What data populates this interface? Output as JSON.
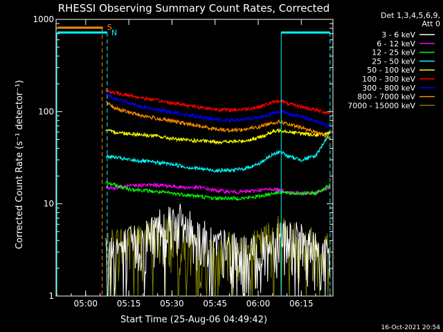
{
  "chart_data": {
    "type": "line",
    "title": "RHESSI Observing Summary Count Rates, Corrected",
    "xlabel": "Start Time (25-Aug-06 04:49:42)",
    "ylabel": "Corrected Count Rate (s⁻¹ detector⁻¹)",
    "yscale": "log",
    "ylim": [
      1,
      1000
    ],
    "xlim": [
      "04:49:42",
      "06:26:00"
    ],
    "x_ticks": [
      "05:00",
      "05:15",
      "05:30",
      "05:45",
      "06:00",
      "06:15"
    ],
    "y_ticks": [
      "1",
      "10",
      "100",
      "1000"
    ],
    "legend_header": [
      "Det 1,3,4,5,6,9,",
      "Att 0"
    ],
    "legend_position": "right",
    "x": [
      "05:07",
      "05:10",
      "05:15",
      "05:20",
      "05:25",
      "05:30",
      "05:35",
      "05:40",
      "05:45",
      "05:50",
      "05:55",
      "06:00",
      "06:05",
      "06:08",
      "06:10",
      "06:15",
      "06:20",
      "06:25"
    ],
    "series": [
      {
        "name": "3 - 6 keV",
        "color": "#ffffff",
        "values": [
          2.5,
          2.6,
          2.8,
          3.2,
          4.5,
          5.5,
          4.5,
          3.5,
          2.8,
          2.5,
          2.2,
          2.2,
          3.0,
          4.0,
          3.5,
          3.0,
          2.5,
          2.0
        ]
      },
      {
        "name": "6 - 12 keV",
        "color": "#ff00ff",
        "values": [
          15,
          15,
          15.5,
          16,
          16,
          15.5,
          15,
          15,
          14,
          13.5,
          13.5,
          14,
          14.5,
          14,
          13.5,
          13,
          13,
          15
        ]
      },
      {
        "name": "12 - 25 keV",
        "color": "#00ff00",
        "values": [
          17,
          16,
          14.5,
          14,
          13.5,
          13,
          12.5,
          12,
          11.5,
          11.5,
          11.5,
          12,
          13,
          13.5,
          13,
          13,
          13,
          16
        ]
      },
      {
        "name": "25 - 50 keV",
        "color": "#00ffff",
        "values": [
          33,
          32,
          30,
          29,
          28,
          27,
          25,
          24,
          23,
          23,
          24,
          27,
          34,
          37,
          33,
          30,
          33,
          60
        ]
      },
      {
        "name": "50 - 100 keV",
        "color": "#ffff00",
        "values": [
          62,
          60,
          58,
          56,
          54,
          51,
          49,
          48,
          47,
          47,
          48,
          52,
          60,
          63,
          61,
          58,
          56,
          58
        ]
      },
      {
        "name": "100 - 300 keV",
        "color": "#ff0000",
        "values": [
          170,
          160,
          150,
          140,
          132,
          124,
          118,
          111,
          106,
          104,
          106,
          112,
          126,
          132,
          122,
          113,
          104,
          96
        ]
      },
      {
        "name": "300 - 800 keV",
        "color": "#0000ff",
        "values": [
          155,
          140,
          125,
          112,
          104,
          99,
          93,
          87,
          83,
          80,
          82,
          86,
          95,
          102,
          96,
          88,
          79,
          68
        ]
      },
      {
        "name": "800 - 7000 keV",
        "color": "#ff8c00",
        "values": [
          125,
          110,
          98,
          90,
          84,
          79,
          74,
          69,
          65,
          63,
          64,
          68,
          76,
          78,
          73,
          67,
          60,
          52
        ]
      },
      {
        "name": "7000 - 15000 keV",
        "color": "#808000",
        "values": [
          2.6,
          2.8,
          3.0,
          3.2,
          3.5,
          3.8,
          2.6,
          2.3,
          2.0,
          2.4,
          2.3,
          2.6,
          3.6,
          4.0,
          3.4,
          3.0,
          2.8,
          2.6
        ]
      }
    ],
    "annotations": [
      {
        "label": "S",
        "color": "#ff8c00",
        "time": "05:06"
      },
      {
        "label": "N",
        "color": "#00ffff",
        "time": "05:07"
      }
    ],
    "footer": "16-Oct-2021 20:54"
  }
}
